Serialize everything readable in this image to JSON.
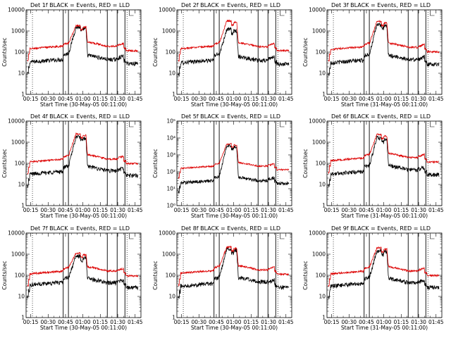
{
  "colors": {
    "events": "#000000",
    "lld": "#dd0000",
    "axes": "#000000",
    "background": "#ffffff"
  },
  "common": {
    "ylabel": "Counts/sec",
    "x_ticks": [
      "00:15",
      "00:30",
      "00:45",
      "01:00",
      "01:15",
      "01:30",
      "01:45"
    ],
    "x_ticks_min": [
      15,
      30,
      45,
      60,
      75,
      90,
      105
    ],
    "xlim_min": [
      11,
      110
    ],
    "dotted_lines_min": [
      16.5,
      98
    ],
    "solid_lines_min": [
      43,
      47.5,
      81,
      89.5,
      96.2
    ]
  },
  "chart_data": [
    {
      "type": "line",
      "panel": "det-1f",
      "title": "Det 1f BLACK = Events, RED = LLD",
      "xlabel": "Start Time (30-May-05 00:11:00)",
      "yticks": [
        "1",
        "10",
        "100",
        "1000",
        "10000"
      ],
      "ylim": [
        1,
        10000
      ],
      "series": [
        {
          "name": "Events",
          "color": "black",
          "base": 38,
          "plateau": 80,
          "peak": 1500,
          "post": 45,
          "bump": 65
        },
        {
          "name": "LLD",
          "color": "red",
          "base": 160,
          "plateau": 250,
          "peak": 1800,
          "post": 190,
          "bump": 260
        }
      ]
    },
    {
      "type": "line",
      "panel": "det-2f",
      "title": "Det 2f BLACK = Events, RED = LLD",
      "xlabel": "Start Time (30-May-05 00:11:00)",
      "yticks": [
        "1",
        "10",
        "100",
        "1000",
        "10000"
      ],
      "ylim": [
        1,
        10000
      ],
      "series": [
        {
          "name": "Events",
          "color": "black",
          "base": 35,
          "plateau": 75,
          "peak": 1200,
          "post": 40,
          "bump": 60
        },
        {
          "name": "LLD",
          "color": "red",
          "base": 160,
          "plateau": 260,
          "peak": 3000,
          "post": 180,
          "bump": 260
        }
      ]
    },
    {
      "type": "line",
      "panel": "det-3f",
      "title": "Det 3f BLACK = Events, RED = LLD",
      "xlabel": "Start Time (31-May-05 00:11:00)",
      "yticks": [
        "1",
        "10",
        "100",
        "1000",
        "10000"
      ],
      "ylim": [
        1,
        10000
      ],
      "series": [
        {
          "name": "Events",
          "color": "black",
          "base": 35,
          "plateau": 75,
          "peak": 2000,
          "post": 45,
          "bump": 60
        },
        {
          "name": "LLD",
          "color": "red",
          "base": 150,
          "plateau": 250,
          "peak": 2800,
          "post": 170,
          "bump": 230
        }
      ]
    },
    {
      "type": "line",
      "panel": "det-4f",
      "title": "Det 4f BLACK = Events, RED = LLD",
      "xlabel": "Start Time (30-May-05 00:11:00)",
      "yticks": [
        "1",
        "10",
        "100",
        "1000",
        "10000"
      ],
      "ylim": [
        1,
        10000
      ],
      "series": [
        {
          "name": "Events",
          "color": "black",
          "base": 35,
          "plateau": 70,
          "peak": 1800,
          "post": 45,
          "bump": 60
        },
        {
          "name": "LLD",
          "color": "red",
          "base": 130,
          "plateau": 220,
          "peak": 2500,
          "post": 160,
          "bump": 220
        }
      ]
    },
    {
      "type": "line",
      "panel": "det-5f",
      "title": "Det 5f BLACK = Events, RED = LLD",
      "xlabel": "Start Time (30-May-05 00:11:00)",
      "yticks": [
        "10⁰",
        "10¹",
        "10²",
        "10³",
        "10⁴",
        "10⁵"
      ],
      "ylim": [
        1,
        100000
      ],
      "series": [
        {
          "name": "Events",
          "color": "black",
          "base": 25,
          "plateau": 50,
          "peak": 3500,
          "post": 30,
          "bump": 45
        },
        {
          "name": "LLD",
          "color": "red",
          "base": 180,
          "plateau": 300,
          "peak": 4500,
          "post": 220,
          "bump": 300
        }
      ]
    },
    {
      "type": "line",
      "panel": "det-6f",
      "title": "Det 6f BLACK = Events, RED = LLD",
      "xlabel": "Start Time (31-May-05 00:11:00)",
      "yticks": [
        "1",
        "10",
        "100",
        "1000",
        "10000"
      ],
      "ylim": [
        1,
        10000
      ],
      "series": [
        {
          "name": "Events",
          "color": "black",
          "base": 35,
          "plateau": 75,
          "peak": 1600,
          "post": 50,
          "bump": 65
        },
        {
          "name": "LLD",
          "color": "red",
          "base": 150,
          "plateau": 250,
          "peak": 2300,
          "post": 190,
          "bump": 260
        }
      ]
    },
    {
      "type": "line",
      "panel": "det-7f",
      "title": "Det 7f BLACK = Events, RED = LLD",
      "xlabel": "Start Time (30-May-05 00:11:00)",
      "yticks": [
        "1",
        "10",
        "100",
        "1000",
        "10000"
      ],
      "ylim": [
        1,
        10000
      ],
      "series": [
        {
          "name": "Events",
          "color": "black",
          "base": 40,
          "plateau": 75,
          "peak": 800,
          "post": 45,
          "bump": 60
        },
        {
          "name": "LLD",
          "color": "red",
          "base": 130,
          "plateau": 220,
          "peak": 1100,
          "post": 160,
          "bump": 210
        }
      ]
    },
    {
      "type": "line",
      "panel": "det-8f",
      "title": "Det 8f BLACK = Events, RED = LLD",
      "xlabel": "Start Time (30-May-05 00:11:00)",
      "yticks": [
        "1",
        "10",
        "100",
        "1000",
        "10000"
      ],
      "ylim": [
        1,
        10000
      ],
      "series": [
        {
          "name": "Events",
          "color": "black",
          "base": 35,
          "plateau": 75,
          "peak": 1800,
          "post": 50,
          "bump": 60
        },
        {
          "name": "LLD",
          "color": "red",
          "base": 140,
          "plateau": 250,
          "peak": 2200,
          "post": 180,
          "bump": 250
        }
      ]
    },
    {
      "type": "line",
      "panel": "det-9f",
      "title": "Det 9f BLACK = Events, RED = LLD",
      "xlabel": "Start Time (31-May-05 00:11:00)",
      "yticks": [
        "1",
        "10",
        "100",
        "1000",
        "10000"
      ],
      "ylim": [
        1,
        10000
      ],
      "series": [
        {
          "name": "Events",
          "color": "black",
          "base": 35,
          "plateau": 75,
          "peak": 1500,
          "post": 45,
          "bump": 60
        },
        {
          "name": "LLD",
          "color": "red",
          "base": 130,
          "plateau": 230,
          "peak": 2000,
          "post": 160,
          "bump": 220
        }
      ]
    }
  ]
}
